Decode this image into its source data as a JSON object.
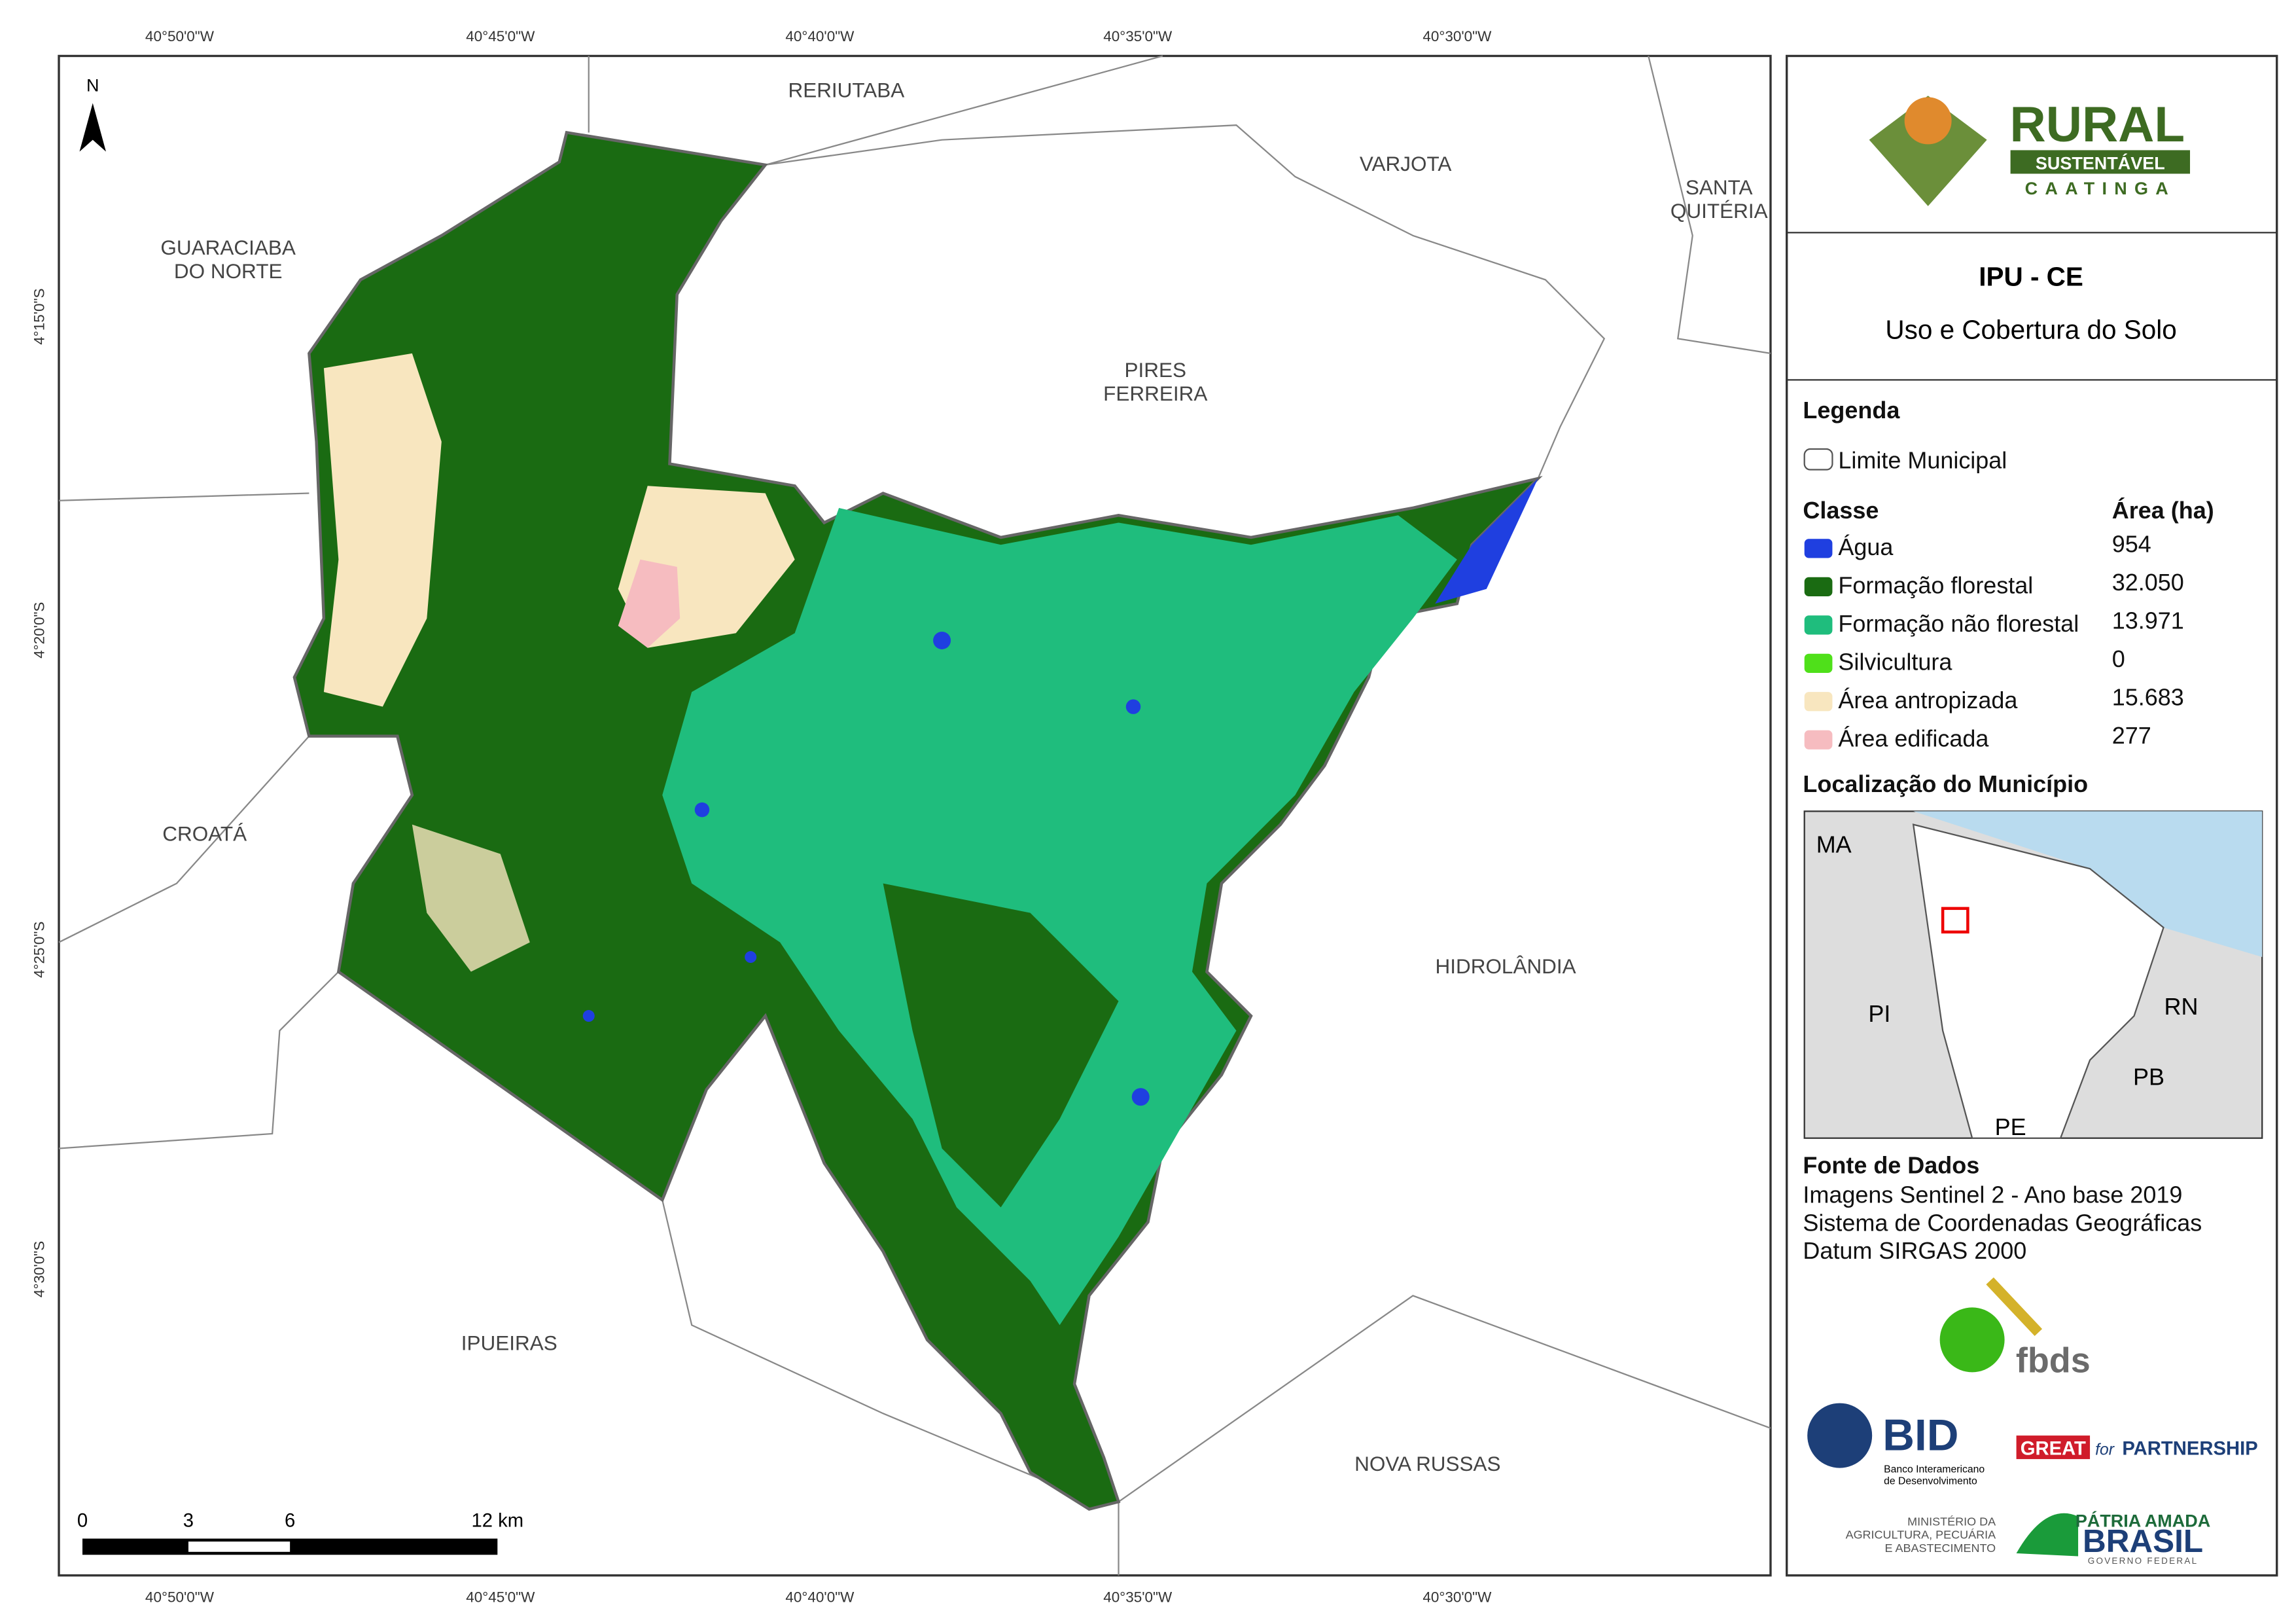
{
  "map": {
    "north": "N",
    "graticule": {
      "top": [
        "40°50'0\"W",
        "40°45'0\"W",
        "40°40'0\"W",
        "40°35'0\"W",
        "40°30'0\"W"
      ],
      "bottom": [
        "40°50'0\"W",
        "40°45'0\"W",
        "40°40'0\"W",
        "40°35'0\"W",
        "40°30'0\"W"
      ],
      "left": [
        "4°15'0\"S",
        "4°20'0\"S",
        "4°25'0\"S",
        "4°30'0\"S"
      ]
    },
    "places": [
      {
        "lines": [
          "RERIUTABA"
        ]
      },
      {
        "lines": [
          "VARJOTA"
        ]
      },
      {
        "lines": [
          "SANTA",
          "QUITÉRIA"
        ]
      },
      {
        "lines": [
          "GUARACIABA",
          "DO NORTE"
        ]
      },
      {
        "lines": [
          "PIRES",
          "FERREIRA"
        ]
      },
      {
        "lines": [
          "CROATÁ"
        ]
      },
      {
        "lines": [
          "HIDROLÂNDIA"
        ]
      },
      {
        "lines": [
          "IPUEIRAS"
        ]
      },
      {
        "lines": [
          "NOVA RUSSAS"
        ]
      }
    ],
    "scale": [
      "0",
      "3",
      "6",
      "12 km"
    ]
  },
  "panel": {
    "logo": {
      "word": "RURAL",
      "band": "SUSTENTÁVEL",
      "sub": "CAATINGA"
    },
    "title": "IPU - CE",
    "subtitle": "Uso e Cobertura do Solo",
    "legend_title": "Legenda",
    "boundary": "Limite Municipal",
    "class_header": "Classe",
    "area_header": "Área (ha)",
    "classes": [
      {
        "name": "Água",
        "area": "954",
        "color": "#1f3fe0"
      },
      {
        "name": "Formação florestal",
        "area": "32.050",
        "color": "#1a6b12"
      },
      {
        "name": "Formação não florestal",
        "area": "13.971",
        "color": "#1fbd7d"
      },
      {
        "name": "Silvicultura",
        "area": "0",
        "color": "#4fe01a"
      },
      {
        "name": "Área antropizada",
        "area": "15.683",
        "color": "#f8e6bf"
      },
      {
        "name": "Área edificada",
        "area": "277",
        "color": "#f6bcc0"
      }
    ],
    "location_title": "Localização do Município",
    "locator_labels": [
      "MA",
      "PI",
      "RN",
      "PB",
      "PE"
    ],
    "sources_title": "Fonte de Dados",
    "sources": [
      "Imagens Sentinel 2 - Ano base 2019",
      "Sistema de Coordenadas Geográficas",
      "Datum SIRGAS 2000"
    ],
    "sponsors": {
      "fbds": "fbds",
      "bid": "BID",
      "bid_sub": [
        "Banco Interamericano",
        "de Desenvolvimento"
      ],
      "great": "GREAT",
      "great_for": "for",
      "great_partner": "PARTNERSHIP",
      "ministry": [
        "MINISTÉRIO DA",
        "AGRICULTURA, PECUÁRIA",
        "E ABASTECIMENTO"
      ],
      "patria": "PÁTRIA AMADA",
      "brasil": "BRASIL",
      "gov": "GOVERNO FEDERAL"
    }
  }
}
